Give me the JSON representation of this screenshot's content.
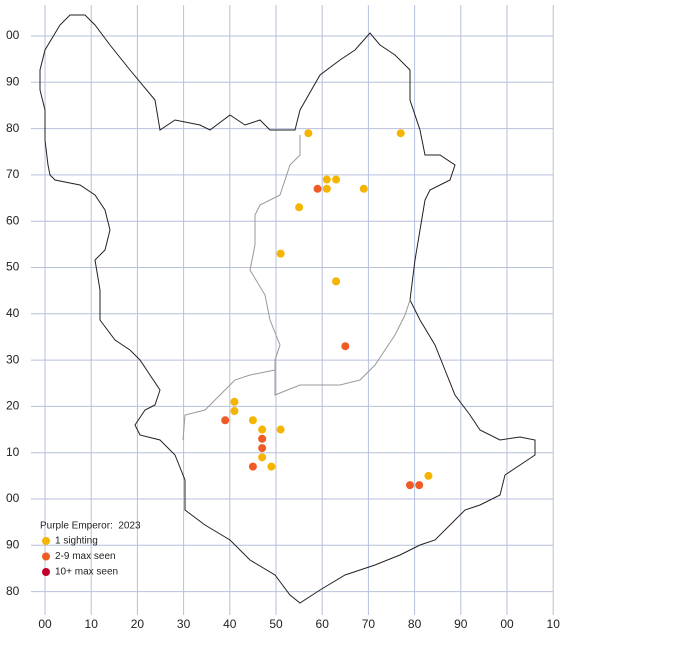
{
  "chart_data": {
    "type": "scatter",
    "legend_title": "Purple Emperor:  2023",
    "xlim": [
      -3,
      110
    ],
    "ylim": [
      -25,
      107
    ],
    "xticks": [
      {
        "value": 0,
        "label": "00"
      },
      10,
      20,
      30,
      40,
      50,
      60,
      70,
      80,
      90,
      {
        "value": 100,
        "label": "00"
      },
      {
        "value": 110,
        "label": "10"
      }
    ],
    "yticks": [
      {
        "value": -20,
        "label": "80"
      },
      {
        "value": -10,
        "label": "90"
      },
      {
        "value": 0,
        "label": "00"
      },
      10,
      20,
      30,
      40,
      50,
      60,
      70,
      80,
      90,
      {
        "value": 100,
        "label": "00"
      }
    ],
    "grid": true,
    "series": [
      {
        "name": "1 sighting",
        "color": "#f5b400",
        "x": [
          57,
          77,
          61,
          63,
          61,
          69,
          55,
          51,
          63,
          41,
          41,
          45,
          47,
          51,
          47,
          49,
          83
        ],
        "values": [
          79,
          79,
          69,
          69,
          67,
          67,
          63,
          53,
          47,
          21,
          19,
          17,
          15,
          15,
          9,
          7,
          5
        ]
      },
      {
        "name": "2-9 max seen",
        "color": "#f05a24",
        "x": [
          59,
          65,
          39,
          47,
          47,
          45,
          79,
          81
        ],
        "values": [
          67,
          33,
          17,
          13,
          11,
          7,
          3,
          3
        ]
      },
      {
        "name": "10+ max seen",
        "color": "#c0002a",
        "x": [],
        "values": []
      }
    ]
  }
}
